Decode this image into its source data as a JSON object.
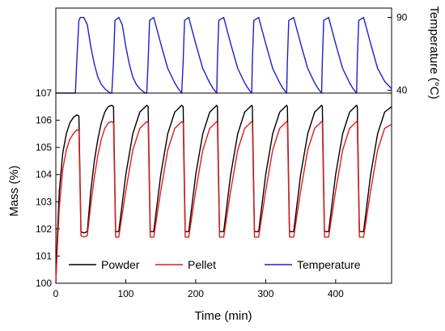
{
  "chart_data": {
    "type": "line",
    "xlabel": "Time (min)",
    "ylabel_left": "Mass (%)",
    "ylabel_right": "Temperature (°C)",
    "xlim": [
      0,
      480
    ],
    "ylim_mass": [
      100,
      107
    ],
    "temperature_ticks": [
      40,
      90
    ],
    "x_ticks": [
      0,
      100,
      200,
      300,
      400
    ],
    "y_ticks": [
      100,
      101,
      102,
      103,
      104,
      105,
      106,
      107
    ],
    "grid": false,
    "legend_position": "bottom",
    "cycle_period_min": 49.5,
    "first_cycle_start_min": 33,
    "series": [
      {
        "name": "Powder",
        "color": "#000000",
        "x": [
          0,
          2,
          5,
          10,
          15,
          20,
          25,
          30,
          33,
          36,
          40,
          45,
          50,
          55,
          60,
          65,
          70,
          75,
          80,
          82.5,
          85.5,
          90,
          100,
          110,
          120,
          130,
          132,
          135,
          140,
          150,
          160,
          170,
          180,
          182,
          185,
          190,
          200,
          210,
          220,
          230,
          231,
          234,
          240,
          250,
          260,
          270,
          280,
          281,
          284,
          290,
          300,
          310,
          320,
          330,
          331,
          334,
          340,
          350,
          360,
          370,
          380,
          381,
          384,
          390,
          400,
          410,
          420,
          430,
          431,
          434,
          440,
          450,
          460,
          470,
          480
        ],
        "y": [
          100.0,
          101.6,
          103.4,
          104.8,
          105.5,
          105.9,
          106.1,
          106.2,
          106.15,
          101.9,
          101.85,
          101.9,
          103.4,
          104.5,
          105.3,
          105.9,
          106.3,
          106.5,
          106.55,
          106.5,
          101.9,
          101.9,
          104.0,
          105.5,
          106.3,
          106.55,
          106.5,
          101.9,
          101.9,
          104.0,
          105.5,
          106.3,
          106.55,
          106.5,
          101.9,
          101.9,
          104.0,
          105.5,
          106.3,
          106.55,
          106.5,
          101.9,
          101.9,
          104.0,
          105.5,
          106.3,
          106.55,
          106.5,
          101.9,
          101.9,
          104.0,
          105.5,
          106.3,
          106.55,
          106.5,
          101.9,
          101.9,
          104.0,
          105.5,
          106.3,
          106.55,
          106.5,
          101.9,
          101.9,
          104.0,
          105.5,
          106.3,
          106.55,
          106.5,
          101.9,
          101.9,
          104.0,
          105.5,
          106.3,
          106.5
        ]
      },
      {
        "name": "Pellet",
        "color": "#e41a1c",
        "x": [
          0,
          2,
          5,
          10,
          15,
          20,
          25,
          30,
          33,
          36,
          40,
          45,
          50,
          55,
          60,
          65,
          70,
          75,
          80,
          82.5,
          85.5,
          90,
          100,
          110,
          120,
          130,
          132,
          135,
          140,
          150,
          160,
          170,
          180,
          182,
          185,
          190,
          200,
          210,
          220,
          230,
          231,
          234,
          240,
          250,
          260,
          270,
          280,
          281,
          284,
          290,
          300,
          310,
          320,
          330,
          331,
          334,
          340,
          350,
          360,
          370,
          380,
          381,
          384,
          390,
          400,
          410,
          420,
          430,
          431,
          434,
          440,
          450,
          460,
          470,
          480
        ],
        "y": [
          100.0,
          101.2,
          102.8,
          104.2,
          104.9,
          105.3,
          105.5,
          105.65,
          105.6,
          101.75,
          101.7,
          101.75,
          102.9,
          103.9,
          104.7,
          105.3,
          105.7,
          105.9,
          105.95,
          105.9,
          101.7,
          101.7,
          103.4,
          104.9,
          105.7,
          105.95,
          105.9,
          101.7,
          101.7,
          103.4,
          104.9,
          105.7,
          105.95,
          105.9,
          101.7,
          101.7,
          103.4,
          104.9,
          105.7,
          105.95,
          105.9,
          101.7,
          101.7,
          103.4,
          104.9,
          105.7,
          105.95,
          105.9,
          101.7,
          101.7,
          103.4,
          104.9,
          105.7,
          105.95,
          105.9,
          101.7,
          101.7,
          103.4,
          104.9,
          105.7,
          105.95,
          105.9,
          101.7,
          101.7,
          103.4,
          104.9,
          105.7,
          105.95,
          105.9,
          101.7,
          101.7,
          103.4,
          104.9,
          105.7,
          105.85
        ]
      },
      {
        "name": "Temperature",
        "color": "#1f1fd0",
        "x": [
          0,
          28,
          30,
          33,
          35,
          40,
          45,
          50,
          55,
          60,
          65,
          70,
          75,
          78,
          80,
          82.5,
          84.5,
          90,
          95,
          100,
          105,
          110,
          115,
          120,
          125,
          128,
          130,
          132,
          134,
          140,
          150,
          160,
          170,
          175,
          180,
          182,
          184,
          190,
          200,
          210,
          220,
          225,
          230,
          231,
          233,
          240,
          250,
          260,
          270,
          275,
          280,
          281,
          283,
          290,
          300,
          310,
          320,
          325,
          330,
          331,
          333,
          340,
          350,
          360,
          370,
          375,
          380,
          381,
          383,
          390,
          400,
          410,
          420,
          425,
          430,
          431,
          433,
          440,
          450,
          460,
          470,
          480
        ],
        "y": [
          38,
          38,
          60,
          88,
          90,
          90,
          85,
          70,
          58,
          49,
          44,
          41,
          39,
          38,
          38,
          60,
          88,
          90,
          85,
          70,
          58,
          49,
          44,
          41,
          39,
          38,
          38,
          60,
          88,
          90,
          72,
          55,
          45,
          41,
          38,
          60,
          88,
          90,
          72,
          55,
          45,
          41,
          38,
          60,
          88,
          90,
          72,
          55,
          45,
          41,
          38,
          60,
          88,
          90,
          72,
          55,
          45,
          41,
          38,
          60,
          88,
          90,
          72,
          55,
          45,
          41,
          38,
          60,
          88,
          90,
          72,
          55,
          45,
          41,
          38,
          60,
          88,
          90,
          72,
          55,
          46,
          41
        ]
      }
    ]
  }
}
